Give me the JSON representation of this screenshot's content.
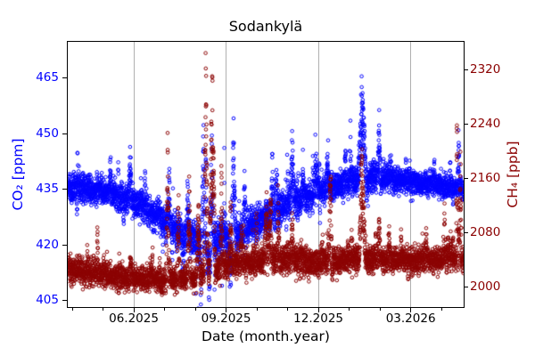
{
  "chart_data": {
    "type": "scatter",
    "title": "Sodankylä",
    "xlabel": "Date (month.year)",
    "legend": "none",
    "grid": "vertical-at-major-x-ticks-only",
    "marker": "open-circle",
    "x_axis": {
      "months_origin": "04.2025",
      "range_month_offsets": [
        -0.145,
        12.72
      ],
      "major_tick_month_offsets": [
        2,
        5,
        8,
        11
      ],
      "major_tick_labels": [
        "06.2025",
        "09.2025",
        "12.2025",
        "03.2026"
      ],
      "minor_tick_month_offsets": [
        0,
        1,
        3,
        4,
        6,
        7,
        9,
        10,
        12
      ]
    },
    "series": [
      {
        "name": "CO2",
        "label": "CO₂ [ppm]",
        "axis": "left",
        "color": "#0000ff",
        "yticks": [
          405,
          420,
          435,
          450,
          465
        ],
        "ytick_labels": [
          "405",
          "420",
          "435",
          "450",
          "465"
        ],
        "ylim": [
          403.3,
          474.8
        ],
        "sample_step_hours": 2,
        "baseline_controls": {
          "columns": [
            "month_offset",
            "baseline_ppm",
            "noise_sigma",
            "episodic_up",
            "episodic_down"
          ],
          "points": [
            [
              -0.2,
              435.5,
              1.8,
              4,
              2
            ],
            [
              0.5,
              435.0,
              1.8,
              4,
              2
            ],
            [
              1.0,
              434.5,
              1.8,
              5,
              2
            ],
            [
              1.6,
              433.0,
              1.8,
              5,
              2
            ],
            [
              2.2,
              430.5,
              1.8,
              5,
              3
            ],
            [
              3.0,
              426.5,
              2.0,
              6,
              5
            ],
            [
              3.8,
              422.0,
              2.2,
              8,
              8
            ],
            [
              4.5,
              421.0,
              2.4,
              12,
              10
            ],
            [
              5.2,
              422.0,
              2.4,
              12,
              9
            ],
            [
              6.0,
              426.0,
              2.2,
              10,
              4
            ],
            [
              7.0,
              430.5,
              2.0,
              9,
              2
            ],
            [
              8.0,
              434.0,
              1.8,
              7,
              2
            ],
            [
              9.0,
              437.0,
              1.8,
              5,
              1.5
            ],
            [
              10.0,
              438.0,
              1.8,
              4,
              1.5
            ],
            [
              11.0,
              437.0,
              1.6,
              3,
              1.5
            ],
            [
              12.0,
              436.0,
              1.5,
              3,
              1.5
            ],
            [
              12.8,
              435.0,
              1.5,
              3,
              1.5
            ]
          ]
        },
        "spike_events": {
          "columns": [
            "month_offset_center",
            "half_width_months",
            "amplitude_ppm"
          ],
          "points": [
            [
              1.88,
              0.05,
              14
            ],
            [
              3.75,
              0.04,
              16
            ],
            [
              4.26,
              0.05,
              32
            ],
            [
              4.55,
              0.05,
              21
            ],
            [
              5.25,
              0.06,
              28
            ],
            [
              5.6,
              0.04,
              17
            ],
            [
              6.5,
              0.05,
              16
            ],
            [
              7.15,
              0.06,
              19
            ],
            [
              7.5,
              0.04,
              13
            ],
            [
              8.3,
              0.05,
              13
            ],
            [
              9.42,
              0.13,
              32
            ],
            [
              9.97,
              0.05,
              18
            ],
            [
              10.35,
              0.04,
              10
            ],
            [
              12.55,
              0.03,
              17
            ],
            [
              3.6,
              0.06,
              -7
            ],
            [
              4.45,
              0.1,
              -13
            ],
            [
              5.15,
              0.08,
              -13
            ]
          ]
        }
      },
      {
        "name": "CH4",
        "label": "CH₄ [ppb]",
        "axis": "right",
        "color": "#8b0000",
        "yticks": [
          2000,
          2080,
          2160,
          2240,
          2320
        ],
        "ytick_labels": [
          "2000",
          "2080",
          "2160",
          "2240",
          "2320"
        ],
        "ylim": [
          1970.0,
          2360.7
        ],
        "sample_step_hours": 2,
        "baseline_controls": {
          "columns": [
            "month_offset",
            "baseline_ppb",
            "noise_sigma",
            "episodic_up",
            "episodic_down"
          ],
          "points": [
            [
              -0.2,
              2026,
              10,
              26,
              6
            ],
            [
              1.0,
              2018,
              9,
              20,
              6
            ],
            [
              2.0,
              2011,
              8,
              18,
              5
            ],
            [
              3.0,
              2008,
              8,
              22,
              5
            ],
            [
              4.0,
              2014,
              9,
              34,
              5
            ],
            [
              5.0,
              2030,
              10,
              34,
              5
            ],
            [
              6.0,
              2036,
              10,
              30,
              5
            ],
            [
              7.0,
              2040,
              10,
              28,
              6
            ],
            [
              8.0,
              2037,
              10,
              22,
              9
            ],
            [
              9.0,
              2041,
              10,
              24,
              9
            ],
            [
              10.0,
              2040,
              9,
              22,
              7
            ],
            [
              11.0,
              2038,
              9,
              18,
              6
            ],
            [
              12.0,
              2040,
              9,
              18,
              5
            ],
            [
              12.8,
              2040,
              9,
              18,
              5
            ]
          ]
        },
        "spike_events": {
          "columns": [
            "month_offset_center",
            "half_width_months",
            "amplitude_ppb"
          ],
          "points": [
            [
              0.82,
              0.03,
              65
            ],
            [
              1.9,
              0.04,
              45
            ],
            [
              3.1,
              0.05,
              225
            ],
            [
              3.45,
              0.04,
              150
            ],
            [
              3.8,
              0.05,
              170
            ],
            [
              4.1,
              0.06,
              140
            ],
            [
              4.35,
              0.07,
              235
            ],
            [
              4.55,
              0.1,
              320
            ],
            [
              4.85,
              0.04,
              180
            ],
            [
              5.15,
              0.05,
              95
            ],
            [
              5.5,
              0.04,
              70
            ],
            [
              6.3,
              0.05,
              85
            ],
            [
              6.7,
              0.04,
              60
            ],
            [
              7.15,
              0.05,
              70
            ],
            [
              8.4,
              0.04,
              45
            ],
            [
              9.42,
              0.1,
              190
            ],
            [
              9.97,
              0.04,
              80
            ],
            [
              10.3,
              0.04,
              55
            ],
            [
              11.5,
              0.03,
              45
            ],
            [
              12.5,
              0.025,
              240
            ],
            [
              12.62,
              0.03,
              185
            ],
            [
              8.45,
              0.04,
              -30
            ],
            [
              9.1,
              0.03,
              -28
            ]
          ]
        }
      }
    ],
    "colors": {
      "co2_blue": "#0000ff",
      "ch4_dark_red": "#8b0000",
      "grid": "#b0b0b0",
      "spine": "#000000",
      "x_tick_label": "#000000",
      "background": "#ffffff"
    }
  }
}
